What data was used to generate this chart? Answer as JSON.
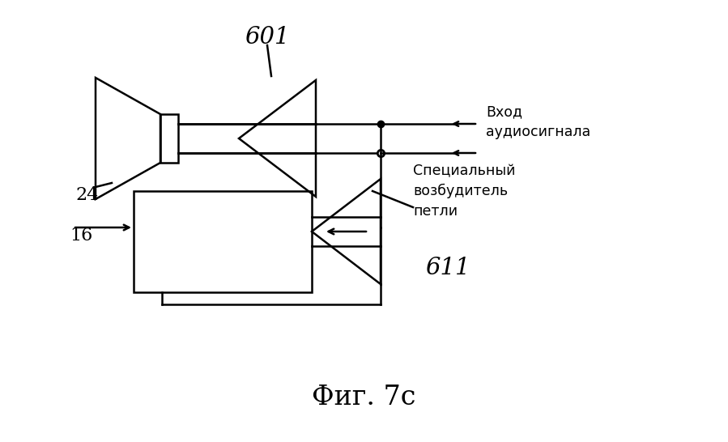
{
  "bg_color": "#ffffff",
  "line_color": "#000000",
  "title": "Фиг. 7c",
  "label_601": "601",
  "label_24": "24",
  "label_16": "16",
  "label_611": "611",
  "label_vkhod": "Вход\nаудиосигнала",
  "label_spets": "Специальный\nвозбудитель\nпетли",
  "figsize": [
    8.99,
    5.46
  ],
  "dpi": 100
}
